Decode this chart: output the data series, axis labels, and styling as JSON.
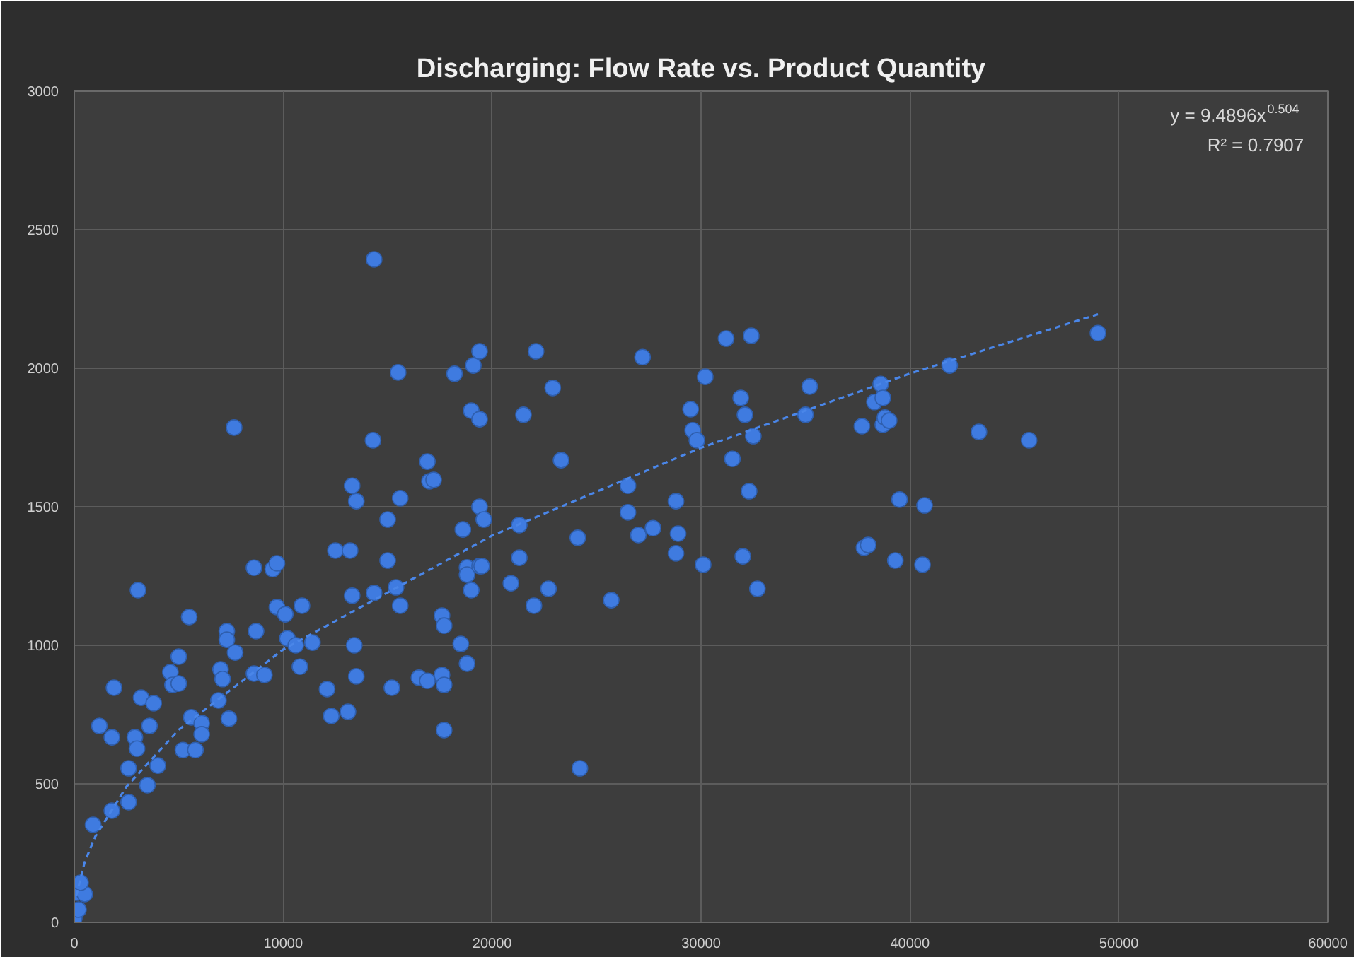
{
  "chart_data": {
    "type": "scatter",
    "title": "Discharging: Flow Rate vs. Product Quantity",
    "annotations": [
      "y = 9.4896x$^{0.504}$",
      "R² = 0.7907"
    ],
    "xlim": [
      0,
      60000
    ],
    "xticks": [
      0,
      10000,
      20000,
      30000,
      40000,
      50000,
      60000
    ],
    "ylim": [
      0,
      3000
    ],
    "yticks": [
      0,
      500,
      1000,
      1500,
      2000,
      2500,
      3000
    ],
    "grid": true,
    "marker": "circle",
    "series": [
      {
        "type": "scatter",
        "color": "#3f7be0",
        "x": [
          0,
          200,
          100,
          500,
          300,
          900,
          1800,
          1800,
          1200,
          1900,
          2600,
          2600,
          2900,
          3000,
          3050,
          3200,
          3500,
          3600,
          3800,
          4000,
          4600,
          4700,
          5000,
          5000,
          5200,
          5500,
          5600,
          5800,
          6100,
          6100,
          6900,
          7000,
          7100,
          7300,
          7300,
          7400,
          7650,
          7700,
          8600,
          8600,
          8700,
          9100,
          9500,
          9700,
          9700,
          10100,
          10200,
          10600,
          10800,
          10900,
          11400,
          12100,
          12300,
          12500,
          13100,
          13200,
          13300,
          13300,
          13400,
          13500,
          13500,
          14300,
          14350,
          14350,
          15000,
          15000,
          15200,
          15400,
          15500,
          15600,
          15600,
          16500,
          16900,
          16900,
          17000,
          17200,
          17600,
          17600,
          17700,
          17700,
          17700,
          18200,
          18500,
          18600,
          18800,
          18800,
          18800,
          19000,
          19000,
          19100,
          19400,
          19400,
          19400,
          19400,
          19500,
          19600,
          20900,
          21300,
          21300,
          21500,
          22000,
          22100,
          22700,
          22900,
          23300,
          24100,
          24200,
          25700,
          26500,
          26500,
          27000,
          27200,
          27700,
          28800,
          28800,
          28900,
          29500,
          29600,
          29800,
          30100,
          30200,
          31200,
          31500,
          31900,
          32000,
          32100,
          32300,
          32400,
          32500,
          32700,
          35000,
          35200,
          37700,
          37800,
          38000,
          38300,
          38600,
          38700,
          38700,
          38800,
          39000,
          39300,
          39500,
          40600,
          40700,
          41900,
          43300,
          45700,
          49000
        ],
        "values": [
          15,
          46,
          107,
          102,
          143,
          352,
          403,
          668,
          709,
          847,
          556,
          434,
          668,
          627,
          1199,
          811,
          495,
          709,
          791,
          566,
          903,
          857,
          959,
          862,
          622,
          1102,
          740,
          622,
          719,
          679,
          801,
          913,
          878,
          1051,
          1020,
          735,
          1786,
          974,
          1280,
          898,
          1051,
          893,
          1275,
          1296,
          1138,
          1112,
          1025,
          1000,
          923,
          1143,
          1010,
          842,
          745,
          1342,
          760,
          1342,
          1576,
          1179,
          1000,
          1520,
          888,
          1740,
          2393,
          1189,
          1454,
          1306,
          847,
          1209,
          1985,
          1531,
          1143,
          883,
          1663,
          872,
          1592,
          1597,
          1107,
          893,
          1071,
          857,
          694,
          1980,
          1005,
          1418,
          1281,
          1255,
          934,
          1847,
          1199,
          2010,
          2061,
          1816,
          1500,
          1286,
          1286,
          1454,
          1224,
          1434,
          1316,
          1832,
          1143,
          2061,
          1204,
          1929,
          1668,
          1388,
          556,
          1163,
          1576,
          1480,
          1398,
          2040,
          1423,
          1520,
          1332,
          1403,
          1852,
          1776,
          1740,
          1291,
          1969,
          2107,
          1673,
          1893,
          1321,
          1832,
          1556,
          2117,
          1755,
          1204,
          1832,
          1934,
          1791,
          1352,
          1362,
          1878,
          1943,
          1893,
          1796,
          1822,
          1811,
          1306,
          1526,
          1291,
          1505,
          2010,
          1770,
          1740,
          2127
        ]
      },
      {
        "type": "line",
        "color": "#4a86e8",
        "line_style": "dashed",
        "marker": "none",
        "x": [
          100,
          500,
          1000,
          2500,
          5000,
          10000,
          20000,
          30000,
          40000,
          49000
        ],
        "values": [
          97,
          218,
          309,
          490,
          695,
          985,
          1396,
          1713,
          1981,
          2195
        ]
      }
    ]
  }
}
